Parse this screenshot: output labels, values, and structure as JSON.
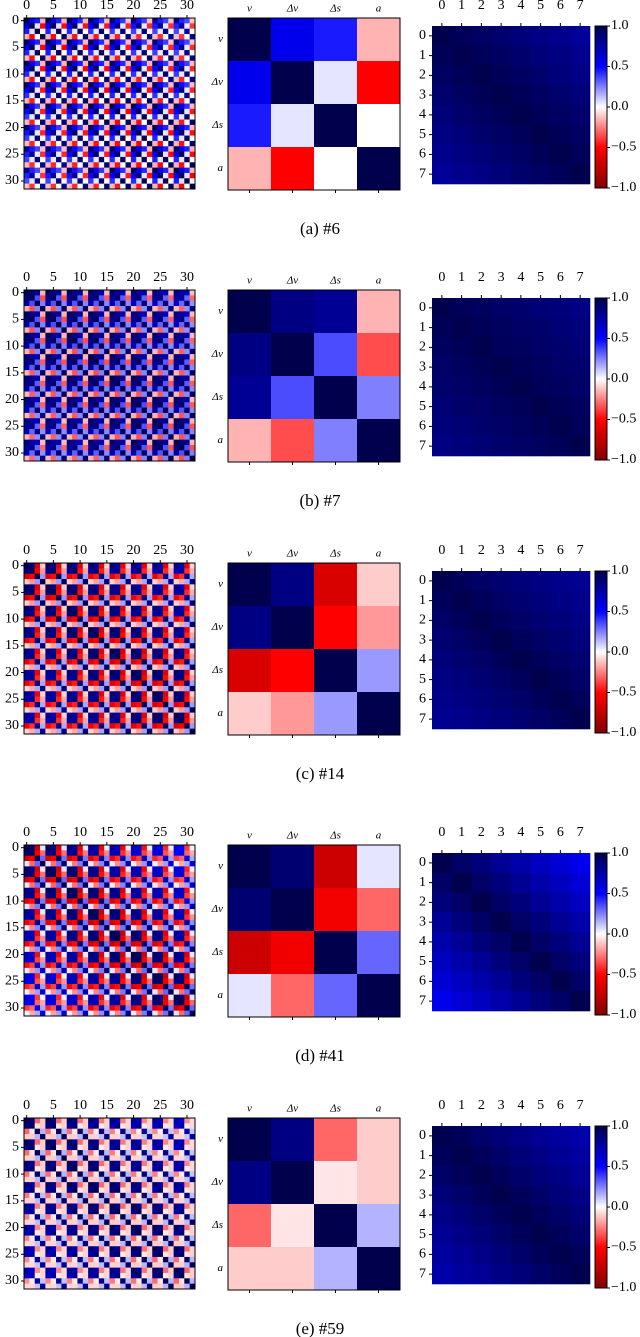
{
  "chart_data": [
    {
      "type": "heatmap",
      "caption": "(a)  #6",
      "colormap": "seismic_r",
      "index_ticks": [
        0,
        5,
        10,
        15,
        20,
        25,
        30
      ],
      "features": [
        "v",
        "Δv",
        "Δs",
        "a"
      ],
      "feature_matrix": [
        [
          1,
          0.55,
          0.45,
          -0.15
        ],
        [
          0.55,
          1,
          0.05,
          -0.5
        ],
        [
          0.45,
          0.05,
          1,
          0.0
        ],
        [
          -0.15,
          -0.5,
          0.0,
          1
        ]
      ],
      "vehicle_ticks": [
        0,
        1,
        2,
        3,
        4,
        5,
        6,
        7
      ],
      "vehicle_matrix": [
        [
          1,
          0.97,
          0.94,
          0.91,
          0.88,
          0.85,
          0.82,
          0.79
        ],
        [
          0.97,
          1,
          0.97,
          0.94,
          0.91,
          0.88,
          0.85,
          0.82
        ],
        [
          0.94,
          0.97,
          1,
          0.97,
          0.94,
          0.91,
          0.88,
          0.85
        ],
        [
          0.91,
          0.94,
          0.97,
          1,
          0.97,
          0.94,
          0.91,
          0.88
        ],
        [
          0.88,
          0.91,
          0.94,
          0.97,
          1,
          0.97,
          0.94,
          0.91
        ],
        [
          0.85,
          0.88,
          0.91,
          0.94,
          0.97,
          1,
          0.97,
          0.94
        ],
        [
          0.82,
          0.85,
          0.88,
          0.91,
          0.94,
          0.97,
          1,
          0.97
        ],
        [
          0.79,
          0.82,
          0.85,
          0.88,
          0.91,
          0.94,
          0.97,
          1
        ]
      ],
      "clim": [
        -1,
        1
      ],
      "cticks": [
        {
          "value": 1,
          "label": "1.0"
        },
        {
          "value": 0.5,
          "label": "0.5"
        },
        {
          "value": 0,
          "label": "0.0"
        },
        {
          "value": -0.5,
          "label": "−0.5"
        },
        {
          "value": -1,
          "label": "−1.0"
        }
      ]
    },
    {
      "type": "heatmap",
      "caption": "(b)  #7",
      "colormap": "seismic_r",
      "index_ticks": [
        0,
        5,
        10,
        15,
        20,
        25,
        30
      ],
      "features": [
        "v",
        "Δv",
        "Δs",
        "a"
      ],
      "feature_matrix": [
        [
          1,
          0.85,
          0.8,
          -0.15
        ],
        [
          0.85,
          1,
          0.35,
          -0.35
        ],
        [
          0.8,
          0.35,
          1,
          0.25
        ],
        [
          -0.15,
          -0.35,
          0.25,
          1
        ]
      ],
      "vehicle_ticks": [
        0,
        1,
        2,
        3,
        4,
        5,
        6,
        7
      ],
      "vehicle_matrix": [
        [
          1,
          0.97,
          0.95,
          0.93,
          0.91,
          0.89,
          0.87,
          0.85
        ],
        [
          0.97,
          1,
          0.97,
          0.95,
          0.93,
          0.91,
          0.89,
          0.87
        ],
        [
          0.95,
          0.97,
          1,
          0.97,
          0.95,
          0.93,
          0.91,
          0.89
        ],
        [
          0.93,
          0.95,
          0.97,
          1,
          0.97,
          0.95,
          0.93,
          0.91
        ],
        [
          0.91,
          0.93,
          0.95,
          0.97,
          1,
          0.97,
          0.95,
          0.93
        ],
        [
          0.89,
          0.91,
          0.93,
          0.95,
          0.97,
          1,
          0.97,
          0.95
        ],
        [
          0.87,
          0.89,
          0.91,
          0.93,
          0.95,
          0.97,
          1,
          0.97
        ],
        [
          0.85,
          0.87,
          0.89,
          0.91,
          0.93,
          0.95,
          0.97,
          1
        ]
      ],
      "clim": [
        -1,
        1
      ],
      "cticks": [
        {
          "value": 1,
          "label": "1.0"
        },
        {
          "value": 0.5,
          "label": "0.5"
        },
        {
          "value": 0,
          "label": "0.0"
        },
        {
          "value": -0.5,
          "label": "−0.5"
        },
        {
          "value": -1,
          "label": "−1.0"
        }
      ]
    },
    {
      "type": "heatmap",
      "caption": "(c)  #14",
      "colormap": "seismic_r",
      "index_ticks": [
        0,
        5,
        10,
        15,
        20,
        25,
        30
      ],
      "features": [
        "v",
        "Δv",
        "Δs",
        "a"
      ],
      "feature_matrix": [
        [
          1,
          0.85,
          -0.65,
          -0.1
        ],
        [
          0.85,
          1,
          -0.5,
          -0.2
        ],
        [
          -0.65,
          -0.5,
          1,
          0.2
        ],
        [
          -0.1,
          -0.2,
          0.2,
          1
        ]
      ],
      "vehicle_ticks": [
        0,
        1,
        2,
        3,
        4,
        5,
        6,
        7
      ],
      "vehicle_matrix": [
        [
          1,
          0.96,
          0.93,
          0.9,
          0.87,
          0.85,
          0.83,
          0.81
        ],
        [
          0.96,
          1,
          0.96,
          0.93,
          0.9,
          0.87,
          0.85,
          0.83
        ],
        [
          0.93,
          0.96,
          1,
          0.96,
          0.93,
          0.9,
          0.87,
          0.85
        ],
        [
          0.9,
          0.93,
          0.96,
          1,
          0.96,
          0.93,
          0.9,
          0.87
        ],
        [
          0.87,
          0.9,
          0.93,
          0.96,
          1,
          0.96,
          0.93,
          0.9
        ],
        [
          0.85,
          0.87,
          0.9,
          0.93,
          0.96,
          1,
          0.96,
          0.93
        ],
        [
          0.83,
          0.85,
          0.87,
          0.9,
          0.93,
          0.96,
          1,
          0.96
        ],
        [
          0.81,
          0.83,
          0.85,
          0.87,
          0.9,
          0.93,
          0.96,
          1
        ]
      ],
      "clim": [
        -1,
        1
      ],
      "cticks": [
        {
          "value": 1,
          "label": "1.0"
        },
        {
          "value": 0.5,
          "label": "0.5"
        },
        {
          "value": 0,
          "label": "0.0"
        },
        {
          "value": -0.5,
          "label": "−0.5"
        },
        {
          "value": -1,
          "label": "−1.0"
        }
      ]
    },
    {
      "type": "heatmap",
      "caption": "(d)  #41",
      "colormap": "seismic_r",
      "index_ticks": [
        0,
        5,
        10,
        15,
        20,
        25,
        30
      ],
      "features": [
        "v",
        "Δv",
        "Δs",
        "a"
      ],
      "feature_matrix": [
        [
          1,
          0.9,
          -0.7,
          0.05
        ],
        [
          0.9,
          1,
          -0.55,
          -0.3
        ],
        [
          -0.7,
          -0.55,
          1,
          0.3
        ],
        [
          0.05,
          -0.3,
          0.3,
          1
        ]
      ],
      "vehicle_ticks": [
        0,
        1,
        2,
        3,
        4,
        5,
        6,
        7
      ],
      "vehicle_matrix": [
        [
          1,
          0.93,
          0.87,
          0.8,
          0.74,
          0.68,
          0.62,
          0.55
        ],
        [
          0.93,
          1,
          0.93,
          0.87,
          0.8,
          0.74,
          0.68,
          0.62
        ],
        [
          0.87,
          0.93,
          1,
          0.93,
          0.87,
          0.8,
          0.74,
          0.68
        ],
        [
          0.8,
          0.87,
          0.93,
          1,
          0.93,
          0.87,
          0.8,
          0.74
        ],
        [
          0.74,
          0.8,
          0.87,
          0.93,
          1,
          0.93,
          0.87,
          0.8
        ],
        [
          0.68,
          0.74,
          0.8,
          0.87,
          0.93,
          1,
          0.93,
          0.87
        ],
        [
          0.62,
          0.68,
          0.74,
          0.8,
          0.87,
          0.93,
          1,
          0.93
        ],
        [
          0.55,
          0.62,
          0.68,
          0.74,
          0.8,
          0.87,
          0.93,
          1
        ]
      ],
      "clim": [
        -1,
        1
      ],
      "cticks": [
        {
          "value": 1,
          "label": "1.0"
        },
        {
          "value": 0.5,
          "label": "0.5"
        },
        {
          "value": 0,
          "label": "0.0"
        },
        {
          "value": -0.5,
          "label": "−0.5"
        },
        {
          "value": -1,
          "label": "−1.0"
        }
      ]
    },
    {
      "type": "heatmap",
      "caption": "(e)  #59",
      "colormap": "seismic_r",
      "index_ticks": [
        0,
        5,
        10,
        15,
        20,
        25,
        30
      ],
      "features": [
        "v",
        "Δv",
        "Δs",
        "a"
      ],
      "feature_matrix": [
        [
          1,
          0.85,
          -0.3,
          -0.1
        ],
        [
          0.85,
          1,
          -0.05,
          -0.1
        ],
        [
          -0.3,
          -0.05,
          1,
          0.15
        ],
        [
          -0.1,
          -0.1,
          0.15,
          1
        ]
      ],
      "vehicle_ticks": [
        0,
        1,
        2,
        3,
        4,
        5,
        6,
        7
      ],
      "vehicle_matrix": [
        [
          1,
          0.96,
          0.92,
          0.88,
          0.84,
          0.8,
          0.77,
          0.74
        ],
        [
          0.96,
          1,
          0.96,
          0.92,
          0.88,
          0.84,
          0.8,
          0.77
        ],
        [
          0.92,
          0.96,
          1,
          0.96,
          0.92,
          0.88,
          0.84,
          0.8
        ],
        [
          0.88,
          0.92,
          0.96,
          1,
          0.96,
          0.92,
          0.88,
          0.84
        ],
        [
          0.84,
          0.88,
          0.92,
          0.96,
          1,
          0.96,
          0.92,
          0.88
        ],
        [
          0.8,
          0.84,
          0.88,
          0.92,
          0.96,
          1,
          0.96,
          0.92
        ],
        [
          0.77,
          0.8,
          0.84,
          0.88,
          0.92,
          0.96,
          1,
          0.96
        ],
        [
          0.74,
          0.77,
          0.8,
          0.84,
          0.88,
          0.92,
          0.96,
          1
        ]
      ],
      "clim": [
        -1,
        1
      ],
      "cticks": [
        {
          "value": 1,
          "label": "1.0"
        },
        {
          "value": 0.5,
          "label": "0.5"
        },
        {
          "value": 0,
          "label": "0.0"
        },
        {
          "value": -0.5,
          "label": "−0.5"
        },
        {
          "value": -1,
          "label": "−1.0"
        }
      ]
    }
  ]
}
